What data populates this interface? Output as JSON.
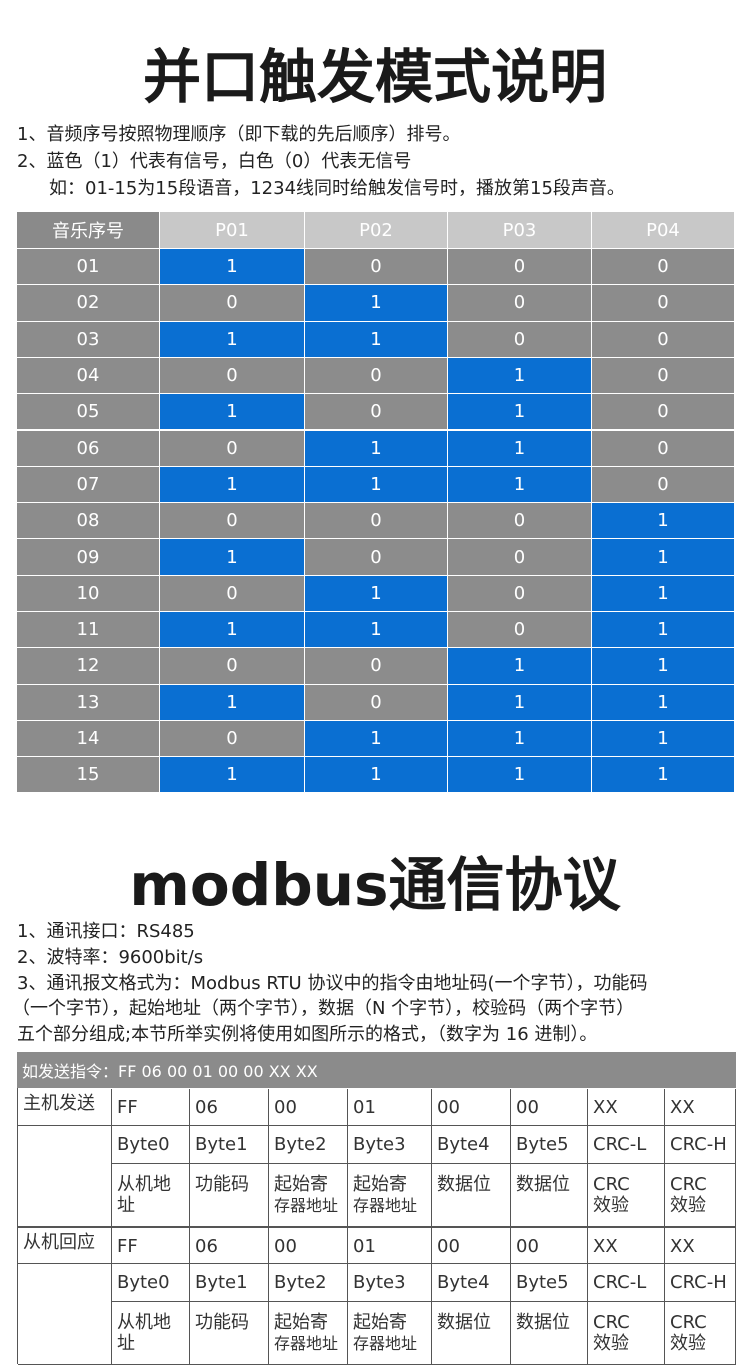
{
  "trigger": {
    "title": "并口触发模式说明",
    "notes": [
      "1、音频序号按照物理顺序（即下载的先后顺序）排号。",
      "2、蓝色（1）代表有信号，白色（0）代表无信号",
      "如：01-15为15段语音，1234线同时给触发信号时，播放第15段声音。"
    ],
    "table": {
      "header": [
        "音乐序号",
        "P01",
        "P02",
        "P03",
        "P04"
      ],
      "on_color": "#0a6fd2",
      "off_color": "#8c8c8c",
      "rows": [
        {
          "label": "01",
          "values": [
            1,
            0,
            0,
            0
          ]
        },
        {
          "label": "02",
          "values": [
            0,
            1,
            0,
            0
          ]
        },
        {
          "label": "03",
          "values": [
            1,
            1,
            0,
            0
          ]
        },
        {
          "label": "04",
          "values": [
            0,
            0,
            1,
            0
          ]
        },
        {
          "label": "05",
          "values": [
            1,
            0,
            1,
            0
          ]
        },
        {
          "label": "06",
          "values": [
            0,
            1,
            1,
            0
          ]
        },
        {
          "label": "07",
          "values": [
            1,
            1,
            1,
            0
          ]
        },
        {
          "label": "08",
          "values": [
            0,
            0,
            0,
            1
          ]
        },
        {
          "label": "09",
          "values": [
            1,
            0,
            0,
            1
          ]
        },
        {
          "label": "10",
          "values": [
            0,
            1,
            0,
            1
          ]
        },
        {
          "label": "11",
          "values": [
            1,
            1,
            0,
            1
          ]
        },
        {
          "label": "12",
          "values": [
            0,
            0,
            1,
            1
          ]
        },
        {
          "label": "13",
          "values": [
            1,
            0,
            1,
            1
          ]
        },
        {
          "label": "14",
          "values": [
            0,
            1,
            1,
            1
          ]
        },
        {
          "label": "15",
          "values": [
            1,
            1,
            1,
            1
          ]
        }
      ]
    }
  },
  "modbus": {
    "title": "modbus通信协议",
    "notes": [
      "1、通讯接口：RS485",
      "2、波特率：9600bit/s",
      "3、通讯报文格式为：Modbus RTU 协议中的指令由地址码(一个字节），功能码",
      "（一个字节），起始地址（两个字节），数据（N 个字节），校验码（两个字节）",
      "五个部分组成;本节所举实例将使用如图所示的格式，（数字为 16 进制）。"
    ],
    "table": {
      "caption": "如发送指令：FF 06 00 01 00 00 XX XX",
      "blocks": [
        {
          "label": "主机发送",
          "values": [
            "FF",
            "06",
            "00",
            "01",
            "00",
            "00",
            "XX",
            "XX"
          ],
          "bytes": [
            "Byte0",
            "Byte1",
            "Byte2",
            "Byte3",
            "Byte4",
            "Byte5",
            "CRC-L",
            "CRC-H"
          ],
          "desc": [
            [
              "从机地",
              "址"
            ],
            [
              "功能码"
            ],
            [
              "起始寄",
              "存器地址"
            ],
            [
              "起始寄",
              "存器地址"
            ],
            [
              "数据位"
            ],
            [
              "数据位"
            ],
            [
              "CRC",
              "效验"
            ],
            [
              "CRC",
              "效验"
            ]
          ]
        },
        {
          "label": "从机回应",
          "values": [
            "FF",
            "06",
            "00",
            "01",
            "00",
            "00",
            "XX",
            "XX"
          ],
          "bytes": [
            "Byte0",
            "Byte1",
            "Byte2",
            "Byte3",
            "Byte4",
            "Byte5",
            "CRC-L",
            "CRC-H"
          ],
          "desc": [
            [
              "从机地",
              "址"
            ],
            [
              "功能码"
            ],
            [
              "起始寄",
              "存器地址"
            ],
            [
              "起始寄",
              "存器地址"
            ],
            [
              "数据位"
            ],
            [
              "数据位"
            ],
            [
              "CRC",
              "效验"
            ],
            [
              "CRC",
              "效验"
            ]
          ]
        }
      ]
    }
  }
}
